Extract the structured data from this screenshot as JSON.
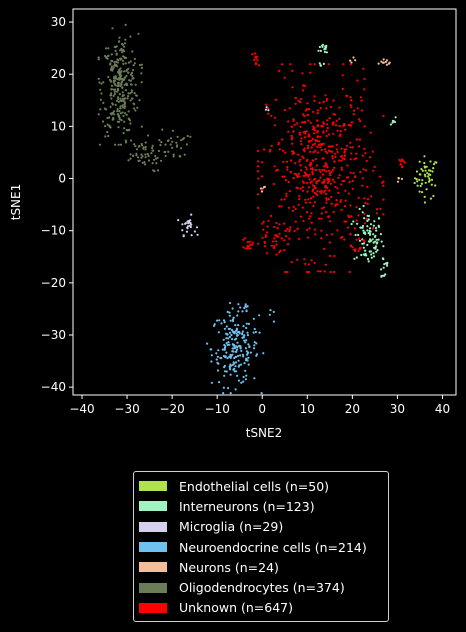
{
  "chart_data": {
    "type": "scatter",
    "xlabel": "tSNE2",
    "ylabel": "tSNE1",
    "xlim": [
      -42,
      43
    ],
    "ylim": [
      -41.5,
      32.5
    ],
    "xticks": [
      -40,
      -30,
      -20,
      -10,
      0,
      10,
      20,
      30,
      40
    ],
    "yticks": [
      -40,
      -30,
      -20,
      -10,
      0,
      10,
      20,
      30
    ],
    "xtick_labels": [
      "−40",
      "−30",
      "−20",
      "−10",
      "0",
      "10",
      "20",
      "30",
      "40"
    ],
    "ytick_labels": [
      "−40",
      "−30",
      "−20",
      "−10",
      "0",
      "10",
      "20",
      "30"
    ],
    "legend_position": "below plot",
    "series": [
      {
        "name": "Endothelial cells (n=50)",
        "count": 50,
        "color": "#aee34c",
        "clusters": [
          {
            "center": [
              36.5,
              0.2
            ],
            "spread": [
              1.3,
              2.0
            ],
            "count": 50
          }
        ]
      },
      {
        "name": "Interneurons (n=123)",
        "count": 123,
        "color": "#9ef5c0",
        "clusters": [
          {
            "center": [
              23.5,
              -11.5
            ],
            "spread": [
              1.6,
              2.6
            ],
            "count": 85
          },
          {
            "center": [
              27,
              -17
            ],
            "spread": [
              0.6,
              1.5
            ],
            "count": 14
          },
          {
            "center": [
              14,
              25
            ],
            "spread": [
              0.7,
              0.6
            ],
            "count": 14
          },
          {
            "center": [
              29,
              11
            ],
            "spread": [
              0.4,
              0.5
            ],
            "count": 6
          },
          {
            "center": [
              13,
              22
            ],
            "spread": [
              0.4,
              0.4
            ],
            "count": 4
          }
        ]
      },
      {
        "name": "Microglia (n=29)",
        "count": 29,
        "color": "#d5d0ee",
        "clusters": [
          {
            "center": [
              -16.5,
              -9
            ],
            "spread": [
              0.9,
              0.9
            ],
            "count": 26
          },
          {
            "center": [
              1,
              13
            ],
            "spread": [
              0.3,
              0.3
            ],
            "count": 3
          }
        ]
      },
      {
        "name": "Neuroendocrine cells (n=214)",
        "count": 214,
        "color": "#6fc1ee",
        "clusters": [
          {
            "center": [
              -6,
              -32.5
            ],
            "spread": [
              2.6,
              3.6
            ],
            "count": 204
          },
          {
            "center": [
              -4,
              -25
            ],
            "spread": [
              0.6,
              1.2
            ],
            "count": 6
          },
          {
            "center": [
              2,
              -26.5
            ],
            "spread": [
              0.4,
              0.6
            ],
            "count": 4
          }
        ]
      },
      {
        "name": "Neurons (n=24)",
        "count": 24,
        "color": "#f5bd98",
        "clusters": [
          {
            "center": [
              27.5,
              22.3
            ],
            "spread": [
              0.7,
              0.3
            ],
            "count": 10
          },
          {
            "center": [
              0,
              -2.3
            ],
            "spread": [
              0.4,
              0.5
            ],
            "count": 6
          },
          {
            "center": [
              30.5,
              -0.3
            ],
            "spread": [
              0.5,
              0.3
            ],
            "count": 4
          },
          {
            "center": [
              20,
              22
            ],
            "spread": [
              0.8,
              0.5
            ],
            "count": 4
          }
        ]
      },
      {
        "name": "Oligodendrocytes (n=374)",
        "count": 374,
        "color": "#6b7d56",
        "clusters": [
          {
            "center": [
              -31.5,
              18
            ],
            "spread": [
              2.0,
              4.8
            ],
            "count": 290
          },
          {
            "center": [
              -27,
              4.5
            ],
            "spread": [
              2.6,
              1.6
            ],
            "count": 55
          },
          {
            "center": [
              -19.5,
              6.5
            ],
            "spread": [
              1.6,
              1.5
            ],
            "count": 29
          }
        ]
      },
      {
        "name": "Unknown (n=647)",
        "count": 647,
        "color": "#ff0000",
        "clusters": [
          {
            "center": [
              13,
              2
            ],
            "spread": [
              5.8,
              8.3
            ],
            "count": 560
          },
          {
            "center": [
              3,
              -11
            ],
            "spread": [
              2.2,
              1.6
            ],
            "count": 40
          },
          {
            "center": [
              -3,
              -12.5
            ],
            "spread": [
              0.5,
              0.6
            ],
            "count": 15
          },
          {
            "center": [
              -1.5,
              23
            ],
            "spread": [
              0.4,
              0.7
            ],
            "count": 10
          },
          {
            "center": [
              21,
              -13
            ],
            "spread": [
              0.8,
              0.8
            ],
            "count": 12
          },
          {
            "center": [
              31,
              3.5
            ],
            "spread": [
              0.4,
              0.9
            ],
            "count": 10
          }
        ]
      }
    ]
  }
}
